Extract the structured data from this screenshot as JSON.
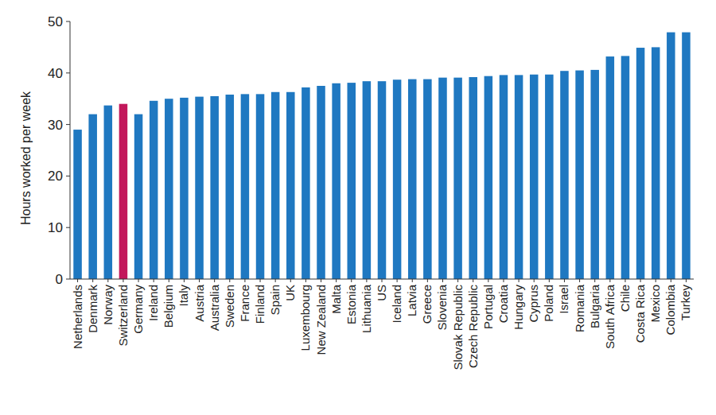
{
  "chart_data": {
    "type": "bar",
    "y_label": "Hours worked per week",
    "categories": [
      "Netherlands",
      "Denmark",
      "Norway",
      "Switzerland",
      "Germany",
      "Ireland",
      "Belgium",
      "Italy",
      "Austria",
      "Australia",
      "Sweden",
      "France",
      "Finland",
      "Spain",
      "UK",
      "Luxembourg",
      "New Zealand",
      "Malta",
      "Estonia",
      "Lithuania",
      "US",
      "Iceland",
      "Latvia",
      "Greece",
      "Slovenia",
      "Slovak Republic",
      "Czech Republic",
      "Portugal",
      "Croatia",
      "Hungary",
      "Cyprus",
      "Poland",
      "Israel",
      "Romania",
      "Bulgaria",
      "South Africa",
      "Chile",
      "Costa Rica",
      "Mexico",
      "Colombia",
      "Turkey"
    ],
    "values": [
      29.0,
      32.0,
      33.7,
      34.0,
      32.0,
      34.6,
      35.0,
      35.2,
      35.4,
      35.5,
      35.8,
      35.9,
      35.9,
      36.3,
      36.3,
      37.2,
      37.5,
      38.0,
      38.1,
      38.4,
      38.4,
      38.7,
      38.8,
      38.8,
      39.1,
      39.1,
      39.2,
      39.4,
      39.6,
      39.6,
      39.7,
      39.7,
      40.4,
      40.5,
      40.6,
      43.2,
      43.3,
      44.9,
      45.0,
      47.9,
      47.9
    ],
    "colors": [
      "#1f78c1",
      "#1f78c1",
      "#1f78c1",
      "#c2185b",
      "#1f78c1",
      "#1f78c1",
      "#1f78c1",
      "#1f78c1",
      "#1f78c1",
      "#1f78c1",
      "#1f78c1",
      "#1f78c1",
      "#1f78c1",
      "#1f78c1",
      "#1f78c1",
      "#1f78c1",
      "#1f78c1",
      "#1f78c1",
      "#1f78c1",
      "#1f78c1",
      "#1f78c1",
      "#1f78c1",
      "#1f78c1",
      "#1f78c1",
      "#1f78c1",
      "#1f78c1",
      "#1f78c1",
      "#1f78c1",
      "#1f78c1",
      "#1f78c1",
      "#1f78c1",
      "#1f78c1",
      "#1f78c1",
      "#1f78c1",
      "#1f78c1",
      "#1f78c1",
      "#1f78c1",
      "#1f78c1",
      "#1f78c1",
      "#1f78c1",
      "#1f78c1"
    ],
    "ylim": [
      0,
      50
    ],
    "yticks": [
      0,
      10,
      20,
      30,
      40,
      50
    ],
    "grid": false
  }
}
